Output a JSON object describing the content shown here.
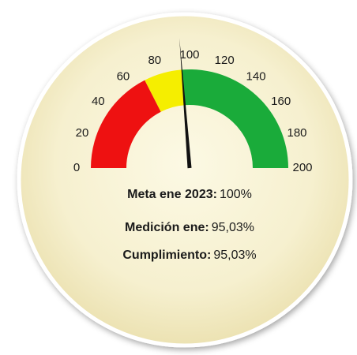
{
  "chart_data": {
    "type": "gauge",
    "range": [
      0,
      200
    ],
    "ticks": [
      0,
      20,
      40,
      60,
      80,
      100,
      120,
      140,
      160,
      180,
      200
    ],
    "bands": [
      {
        "from": 0,
        "to": 70,
        "color": "#ee1111"
      },
      {
        "from": 70,
        "to": 95,
        "color": "#f5ee00"
      },
      {
        "from": 95,
        "to": 200,
        "color": "#1aab3a"
      }
    ],
    "needle": 95.03,
    "labels": [
      {
        "name": "Meta ene 2023:",
        "text": "100%"
      },
      {
        "name": "Medición ene:",
        "text": "95,03%"
      },
      {
        "name": "Cumplimiento:",
        "text": "95,03%"
      }
    ]
  }
}
